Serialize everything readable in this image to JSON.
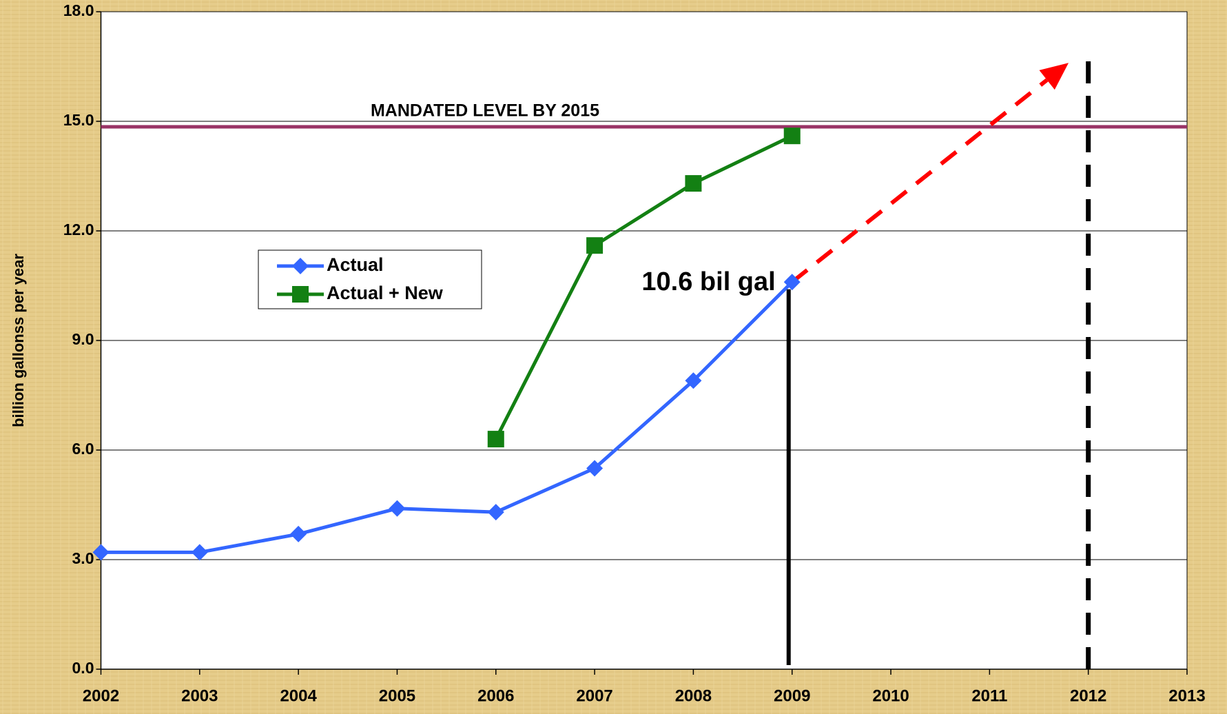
{
  "chart_data": {
    "type": "line",
    "y_axis_label": "billion gallonss per year",
    "x": [
      2002,
      2003,
      2004,
      2005,
      2006,
      2007,
      2008,
      2009,
      2010,
      2011,
      2012,
      2013
    ],
    "series": [
      {
        "name": "Actual",
        "color": "#3366ff",
        "marker": "diamond",
        "values": [
          3.2,
          3.2,
          3.7,
          4.4,
          4.3,
          5.5,
          7.9,
          10.6,
          null,
          null,
          null,
          null
        ]
      },
      {
        "name": "Actual + New",
        "color": "#138013",
        "marker": "square",
        "values": [
          null,
          null,
          null,
          null,
          6.3,
          11.6,
          13.3,
          14.6,
          null,
          null,
          null,
          null
        ]
      }
    ],
    "xlim": [
      2002,
      2013
    ],
    "xticks": [
      2002,
      2003,
      2004,
      2005,
      2006,
      2007,
      2008,
      2009,
      2010,
      2011,
      2012,
      2013
    ],
    "ylim": [
      0,
      18
    ],
    "yticks": [
      {
        "value": 0,
        "label": "0.0"
      },
      {
        "value": 3,
        "label": "3.0"
      },
      {
        "value": 6,
        "label": "6.0"
      },
      {
        "value": 9,
        "label": "9.0"
      },
      {
        "value": 12,
        "label": "12.0"
      },
      {
        "value": 15,
        "label": "15.0"
      },
      {
        "value": 18,
        "label": "18.0"
      }
    ],
    "grid": true,
    "mandate": {
      "label": "MANDATED LEVEL BY 2015",
      "value": 14.85,
      "color": "#993366"
    },
    "annotation": {
      "text": "10.6 bil gal",
      "x": 2009,
      "value": 10.6
    },
    "marker_line": {
      "x": 2009,
      "value": 10.4,
      "color": "#000000"
    },
    "projection": {
      "x": [
        2009,
        2011.8
      ],
      "values": [
        10.6,
        16.6
      ],
      "color": "#ff0000"
    },
    "target_line": {
      "x": 2012,
      "value": 16.9,
      "color": "#000000"
    }
  }
}
